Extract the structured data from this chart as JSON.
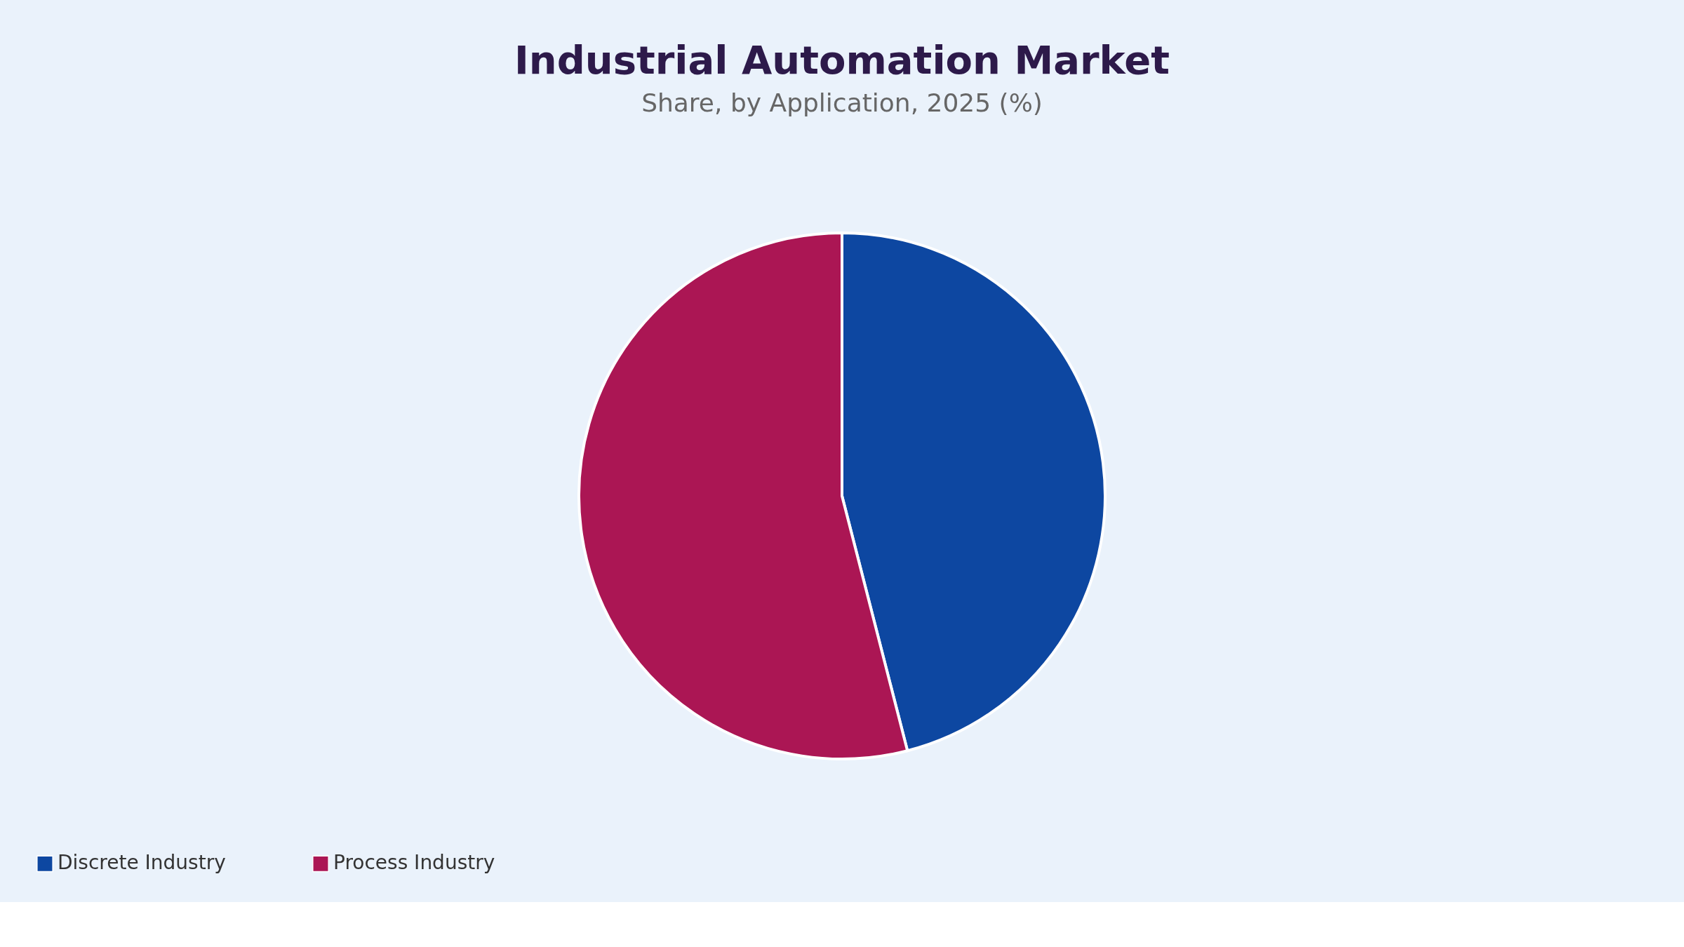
{
  "chart_data": {
    "type": "pie",
    "title": "Industrial Automation Market",
    "subtitle": "Share, by Application, 2025 (%)",
    "categories": [
      "Discrete Industry",
      "Process Industry"
    ],
    "values": [
      46,
      54
    ],
    "colors": [
      "#0d47a1",
      "#ab1654"
    ],
    "legend": "bottom"
  }
}
